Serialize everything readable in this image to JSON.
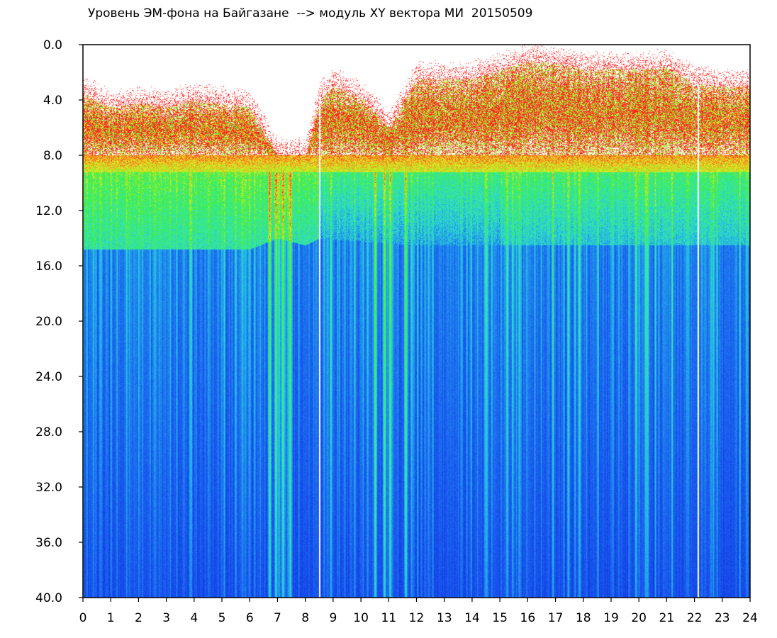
{
  "chart_data": {
    "type": "heatmap",
    "title": "Уровень ЭМ-фона на Байгазане  --> модуль XY вектора МИ  20150509",
    "xlabel": "",
    "ylabel": "",
    "x_ticks": [
      "0",
      "1",
      "2",
      "3",
      "4",
      "5",
      "6",
      "7",
      "8",
      "9",
      "10",
      "11",
      "12",
      "13",
      "14",
      "15",
      "16",
      "17",
      "18",
      "19",
      "20",
      "21",
      "22",
      "23",
      "24"
    ],
    "y_ticks": [
      "0.0",
      "4.0",
      "8.0",
      "12.0",
      "16.0",
      "20.0",
      "24.0",
      "28.0",
      "32.0",
      "36.0",
      "40.0"
    ],
    "xlim": [
      0,
      24
    ],
    "ylim": [
      0,
      40
    ],
    "y_axis_inverted": true,
    "grid": false,
    "colormap": [
      "#0a1ad6",
      "#1a5cf0",
      "#23b8e8",
      "#36e8b0",
      "#3dee3d",
      "#e8f020",
      "#ff2020",
      "#ffffff"
    ],
    "upper_band_top_profile": {
      "hours": [
        0,
        1,
        2,
        3,
        4,
        5,
        6,
        7,
        8,
        8.5,
        9,
        10,
        11,
        12,
        13,
        14,
        15,
        16,
        17,
        18,
        19,
        20,
        21,
        22,
        23,
        24
      ],
      "level": [
        3.5,
        4.5,
        4.2,
        4.5,
        4.0,
        4.3,
        4.5,
        8.0,
        8.0,
        4.0,
        3.0,
        3.8,
        6.0,
        2.5,
        2.5,
        2.5,
        1.8,
        1.2,
        1.3,
        1.8,
        1.7,
        1.8,
        1.6,
        2.8,
        3.0,
        3.0
      ]
    },
    "persistent_band_top": 8.0,
    "green_band_bottom_profile": {
      "hours": [
        0,
        6,
        7,
        8,
        8.5,
        12,
        15,
        20,
        24
      ],
      "level": [
        14.8,
        14.8,
        14.0,
        14.5,
        14.0,
        14.5,
        14.5,
        14.5,
        14.5
      ]
    },
    "bright_vertical_streaks_hours": [
      6.7,
      6.95,
      7.2,
      7.45,
      10.5,
      10.85,
      11.05,
      11.6,
      14.5,
      15.25,
      17.85,
      20.3
    ],
    "white_gap_hours": [
      8.5,
      22.1
    ]
  }
}
